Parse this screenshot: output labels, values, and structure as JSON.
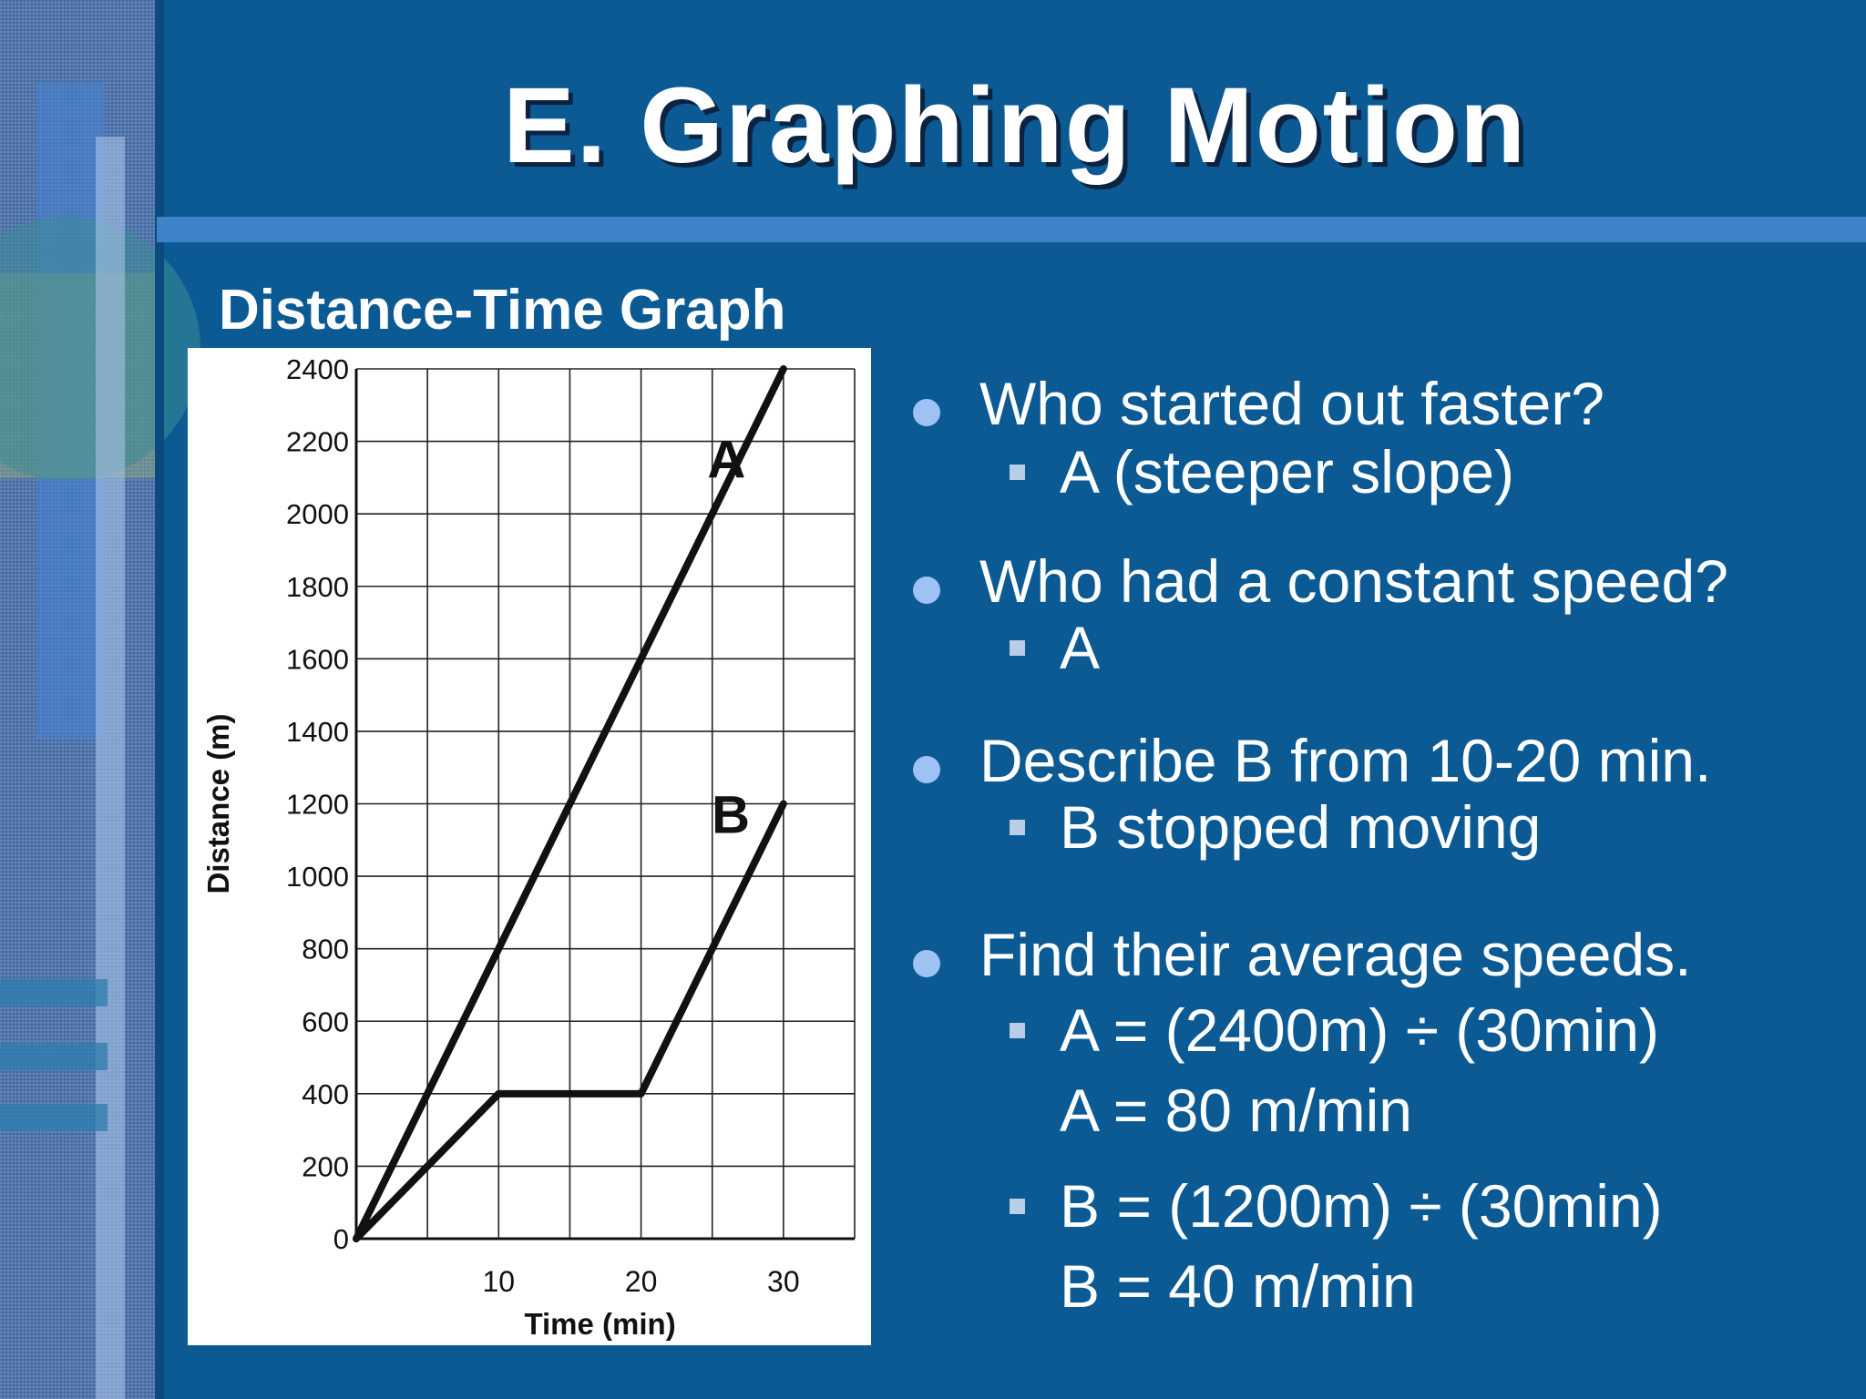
{
  "slide": {
    "title": "E. Graphing Motion",
    "chart_heading": "Distance-Time Graph",
    "colors": {
      "background": "#0b5a94",
      "rule": "#3e83c7",
      "bullet": "#9fc2f5",
      "sub_bullet": "#b9cde6"
    }
  },
  "bullets": [
    {
      "text": "Who started out faster?",
      "subs": [
        "A (steeper slope)"
      ]
    },
    {
      "text": "Who had a constant speed?",
      "subs": [
        "A"
      ]
    },
    {
      "text": "Describe B from 10-20 min.",
      "subs": [
        "B stopped moving"
      ]
    },
    {
      "text": "Find their average speeds.",
      "subs": [
        "A = (2400m) ÷ (30min)\nA = 80 m/min",
        "B = (1200m) ÷ (30min)\nB = 40 m/min"
      ]
    }
  ],
  "chart_data": {
    "type": "line",
    "title": "Distance-Time Graph",
    "xlabel": "Time (min)",
    "ylabel": "Distance (m)",
    "xlim": [
      0,
      35
    ],
    "ylim": [
      0,
      2400
    ],
    "xticks": [
      10,
      20,
      30
    ],
    "yticks": [
      0,
      200,
      400,
      600,
      800,
      1000,
      1200,
      1400,
      1600,
      1800,
      2000,
      2200,
      2400
    ],
    "grid": true,
    "series": [
      {
        "name": "A",
        "x": [
          0,
          30
        ],
        "y": [
          0,
          2400
        ]
      },
      {
        "name": "B",
        "x": [
          0,
          10,
          20,
          30
        ],
        "y": [
          0,
          400,
          400,
          1200
        ]
      }
    ]
  }
}
